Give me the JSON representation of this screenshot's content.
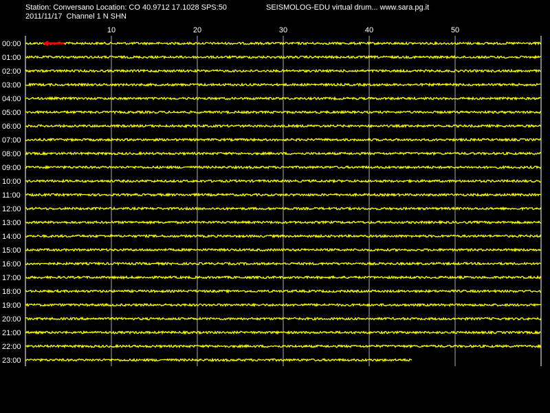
{
  "header": {
    "station_line": "Station: Conversano Location: CO 40.9712 17.1028 SPS:50",
    "brand_line": "SEISMOLOG-EDU virtual drum... www.sara.pg.it",
    "date_line": "2011/11/17  Channel 1 N SHN"
  },
  "colors": {
    "background": "#000000",
    "trace": "#ffff00",
    "marker": "#ff0000",
    "grid": "#ffffff",
    "text": "#ffffff"
  },
  "chart_data": {
    "type": "line",
    "xlabel": "",
    "ylabel": "",
    "xlim": [
      0,
      60
    ],
    "x_ticks": [
      "10",
      "20",
      "30",
      "40",
      "50"
    ],
    "x_tick_values": [
      10,
      20,
      30,
      40,
      50
    ],
    "rows": [
      "00:00",
      "01:00",
      "02:00",
      "03:00",
      "04:00",
      "05:00",
      "06:00",
      "07:00",
      "08:00",
      "09:00",
      "10:00",
      "11:00",
      "12:00",
      "13:00",
      "14:00",
      "15:00",
      "16:00",
      "17:00",
      "18:00",
      "19:00",
      "20:00",
      "21:00",
      "22:00",
      "23:00"
    ],
    "last_row_end_minute": 45,
    "marker": {
      "row": "00:00",
      "start_minute": 2,
      "end_minute": 4.5
    },
    "grid": true
  }
}
